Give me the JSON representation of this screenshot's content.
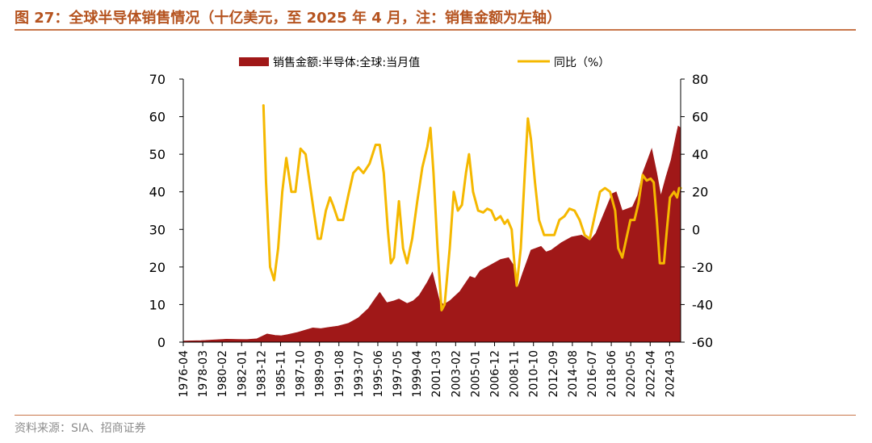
{
  "header": {
    "title": "图 27：全球半导体销售情况（十亿美元，至 2025 年 4 月，注：销售金额为左轴）"
  },
  "footer": {
    "source": "资料来源：SIA、招商证券"
  },
  "colors": {
    "sales": "#a01818",
    "yoy": "#f5b800",
    "accent": "#b5531f"
  },
  "chart_data": {
    "type": "area+line",
    "legend_position": "top",
    "grid": false,
    "x_tick_labels": [
      "1976-04",
      "1978-03",
      "1980-02",
      "1982-01",
      "1983-12",
      "1985-11",
      "1987-10",
      "1989-09",
      "1991-08",
      "1993-07",
      "1995-06",
      "1997-05",
      "1999-04",
      "2001-03",
      "2003-02",
      "2005-01",
      "2006-12",
      "2008-11",
      "2010-10",
      "2012-09",
      "2014-08",
      "2016-07",
      "2018-06",
      "2020-05",
      "2022-04",
      "2024-03"
    ],
    "x_range": [
      "1976-04",
      "2025-04"
    ],
    "y_left": {
      "ticks": [
        "0",
        "10",
        "20",
        "30",
        "40",
        "50",
        "60",
        "70"
      ],
      "range": [
        0,
        70
      ]
    },
    "y_right": {
      "ticks": [
        "-60",
        "-40",
        "-20",
        "0",
        "20",
        "40",
        "60",
        "80"
      ],
      "range": [
        -60,
        80
      ]
    },
    "series": [
      {
        "name": "销售金额:半导体:全球:当月值",
        "type": "area",
        "axis": "left",
        "points": [
          [
            1976.25,
            0.3
          ],
          [
            1978.0,
            0.4
          ],
          [
            1980.0,
            0.7
          ],
          [
            1980.5,
            0.8
          ],
          [
            1981.5,
            0.75
          ],
          [
            1982.5,
            0.7
          ],
          [
            1983.5,
            0.9
          ],
          [
            1984.5,
            2.2
          ],
          [
            1985.3,
            1.8
          ],
          [
            1985.9,
            1.7
          ],
          [
            1986.5,
            2.0
          ],
          [
            1987.5,
            2.6
          ],
          [
            1988.5,
            3.4
          ],
          [
            1989.0,
            3.8
          ],
          [
            1989.8,
            3.6
          ],
          [
            1990.5,
            3.9
          ],
          [
            1991.5,
            4.3
          ],
          [
            1992.5,
            5.0
          ],
          [
            1993.5,
            6.5
          ],
          [
            1994.5,
            9.0
          ],
          [
            1995.0,
            11.0
          ],
          [
            1995.6,
            13.3
          ],
          [
            1996.3,
            10.5
          ],
          [
            1997.0,
            11.0
          ],
          [
            1997.5,
            11.5
          ],
          [
            1998.3,
            10.3
          ],
          [
            1998.9,
            11.0
          ],
          [
            1999.5,
            12.5
          ],
          [
            2000.3,
            16.0
          ],
          [
            2000.8,
            18.6
          ],
          [
            2001.5,
            11.0
          ],
          [
            2001.9,
            10.0
          ],
          [
            2002.5,
            11.0
          ],
          [
            2003.5,
            13.5
          ],
          [
            2004.5,
            17.5
          ],
          [
            2005.0,
            17.0
          ],
          [
            2005.5,
            19.0
          ],
          [
            2006.5,
            20.5
          ],
          [
            2007.5,
            22.0
          ],
          [
            2008.3,
            22.5
          ],
          [
            2008.9,
            20.0
          ],
          [
            2009.2,
            14.5
          ],
          [
            2009.7,
            18.5
          ],
          [
            2010.5,
            24.5
          ],
          [
            2011.5,
            25.5
          ],
          [
            2012.0,
            24.0
          ],
          [
            2012.5,
            24.5
          ],
          [
            2013.5,
            26.5
          ],
          [
            2014.5,
            28.0
          ],
          [
            2015.5,
            28.5
          ],
          [
            2016.3,
            27.0
          ],
          [
            2016.9,
            29.0
          ],
          [
            2017.5,
            33.0
          ],
          [
            2018.5,
            39.5
          ],
          [
            2018.9,
            40.0
          ],
          [
            2019.5,
            35.0
          ],
          [
            2020.0,
            35.5
          ],
          [
            2020.5,
            36.0
          ],
          [
            2021.0,
            39.0
          ],
          [
            2021.5,
            45.0
          ],
          [
            2022.0,
            48.5
          ],
          [
            2022.4,
            51.5
          ],
          [
            2022.9,
            45.0
          ],
          [
            2023.3,
            39.0
          ],
          [
            2023.8,
            44.0
          ],
          [
            2024.3,
            48.5
          ],
          [
            2024.8,
            55.0
          ],
          [
            2025.0,
            57.5
          ],
          [
            2025.25,
            57.0
          ]
        ]
      },
      {
        "name": "同比（%）",
        "type": "line",
        "axis": "right",
        "points": [
          [
            1984.15,
            66
          ],
          [
            1984.4,
            25
          ],
          [
            1984.8,
            -20
          ],
          [
            1985.2,
            -27
          ],
          [
            1985.6,
            -10
          ],
          [
            1986.0,
            20
          ],
          [
            1986.4,
            38
          ],
          [
            1986.9,
            20
          ],
          [
            1987.3,
            20
          ],
          [
            1987.8,
            43
          ],
          [
            1988.3,
            40
          ],
          [
            1988.7,
            25
          ],
          [
            1989.1,
            10
          ],
          [
            1989.5,
            -5
          ],
          [
            1989.8,
            -5
          ],
          [
            1990.3,
            10
          ],
          [
            1990.7,
            17
          ],
          [
            1991.0,
            13
          ],
          [
            1991.5,
            5
          ],
          [
            1992.0,
            5
          ],
          [
            1992.5,
            18
          ],
          [
            1993.0,
            30
          ],
          [
            1993.5,
            33
          ],
          [
            1994.0,
            30
          ],
          [
            1994.6,
            35
          ],
          [
            1995.2,
            45
          ],
          [
            1995.6,
            45
          ],
          [
            1996.0,
            30
          ],
          [
            1996.4,
            0
          ],
          [
            1996.7,
            -18
          ],
          [
            1997.0,
            -15
          ],
          [
            1997.5,
            15
          ],
          [
            1997.9,
            -10
          ],
          [
            1998.3,
            -18
          ],
          [
            1998.8,
            -5
          ],
          [
            1999.3,
            15
          ],
          [
            1999.8,
            33
          ],
          [
            2000.3,
            44
          ],
          [
            2000.6,
            54
          ],
          [
            2000.9,
            30
          ],
          [
            2001.3,
            -10
          ],
          [
            2001.7,
            -43
          ],
          [
            2002.0,
            -40
          ],
          [
            2002.5,
            -10
          ],
          [
            2002.9,
            20
          ],
          [
            2003.3,
            10
          ],
          [
            2003.7,
            13
          ],
          [
            2004.1,
            30
          ],
          [
            2004.4,
            40
          ],
          [
            2004.8,
            20
          ],
          [
            2005.3,
            10
          ],
          [
            2005.8,
            9
          ],
          [
            2006.2,
            11
          ],
          [
            2006.6,
            10
          ],
          [
            2007.0,
            5
          ],
          [
            2007.5,
            7
          ],
          [
            2007.9,
            3
          ],
          [
            2008.2,
            5
          ],
          [
            2008.6,
            0
          ],
          [
            2008.9,
            -20
          ],
          [
            2009.1,
            -30
          ],
          [
            2009.5,
            -10
          ],
          [
            2009.9,
            30
          ],
          [
            2010.2,
            59
          ],
          [
            2010.5,
            48
          ],
          [
            2010.9,
            25
          ],
          [
            2011.3,
            5
          ],
          [
            2011.8,
            -3
          ],
          [
            2012.2,
            -3
          ],
          [
            2012.8,
            -3
          ],
          [
            2013.3,
            5
          ],
          [
            2013.8,
            7
          ],
          [
            2014.3,
            11
          ],
          [
            2014.8,
            10
          ],
          [
            2015.3,
            5
          ],
          [
            2015.8,
            -3
          ],
          [
            2016.3,
            -5
          ],
          [
            2016.9,
            10
          ],
          [
            2017.3,
            20
          ],
          [
            2017.8,
            22
          ],
          [
            2018.3,
            20
          ],
          [
            2018.8,
            10
          ],
          [
            2019.1,
            -10
          ],
          [
            2019.5,
            -15
          ],
          [
            2019.9,
            -5
          ],
          [
            2020.3,
            5
          ],
          [
            2020.7,
            5
          ],
          [
            2021.1,
            14
          ],
          [
            2021.5,
            29
          ],
          [
            2021.9,
            26
          ],
          [
            2022.3,
            27
          ],
          [
            2022.6,
            25
          ],
          [
            2022.9,
            5
          ],
          [
            2023.2,
            -18
          ],
          [
            2023.6,
            -18
          ],
          [
            2023.9,
            0
          ],
          [
            2024.2,
            17
          ],
          [
            2024.6,
            20
          ],
          [
            2024.9,
            17
          ],
          [
            2025.1,
            22
          ],
          [
            2025.25,
            22
          ]
        ]
      }
    ]
  }
}
